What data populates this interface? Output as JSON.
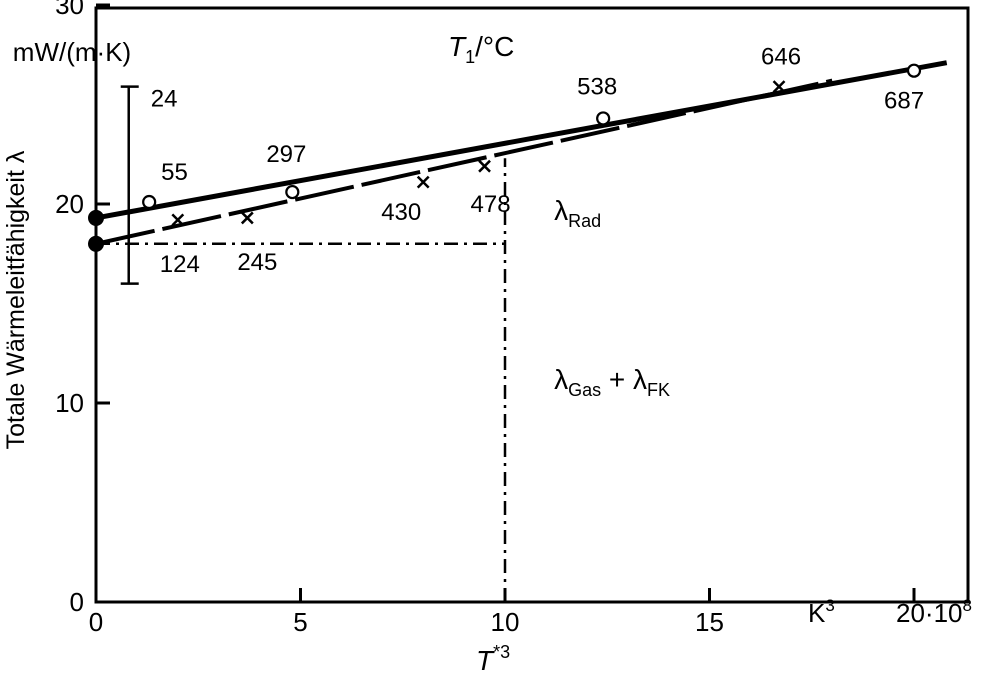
{
  "chart_data": {
    "type": "scatter",
    "title": "",
    "ylabel": "Totale Wärmeleitfähigkeit λ",
    "yunit": "mW/(m·K)",
    "xlabel": "T*3",
    "xunit_label": "K3",
    "x_exponent_label": "20·10",
    "x_exponent_power": "8",
    "top_label": "T1/°C",
    "xlim": [
      0,
      20.5
    ],
    "ylim": [
      0,
      30
    ],
    "x_ticks": [
      0,
      5,
      10,
      15,
      20
    ],
    "x_tick_labels": [
      "0",
      "5",
      "10",
      "15",
      ""
    ],
    "y_ticks": [
      0,
      10,
      20,
      30
    ],
    "y_tick_labels": [
      "0",
      "10",
      "20",
      "30"
    ],
    "grid": false,
    "series": [
      {
        "marker": "circle",
        "points": [
          {
            "x": 1.3,
            "y": 20.1,
            "label": "55"
          },
          {
            "x": 4.8,
            "y": 20.6,
            "label": "297"
          },
          {
            "x": 12.4,
            "y": 24.3,
            "label": "538"
          },
          {
            "x": 20.0,
            "y": 26.7,
            "label": "687"
          }
        ],
        "fit_line": {
          "x0": 0,
          "y0": 19.3,
          "x1": 20.8,
          "y1": 27.1
        },
        "intercept_marker": {
          "x": 0,
          "y": 19.3
        }
      },
      {
        "marker": "x",
        "points": [
          {
            "x": 2.0,
            "y": 19.2,
            "label": "124"
          },
          {
            "x": 3.7,
            "y": 19.3,
            "label": "245"
          },
          {
            "x": 8.0,
            "y": 21.1,
            "label": "430"
          },
          {
            "x": 9.5,
            "y": 21.9,
            "label": "478"
          },
          {
            "x": 16.7,
            "y": 25.9,
            "label": "646"
          }
        ],
        "fit_line": {
          "x0": 0,
          "y0": 18.0,
          "x1": 18.0,
          "y1": 26.2
        },
        "intercept_marker": {
          "x": 0,
          "y": 18.0
        }
      }
    ],
    "error_bar": {
      "x": 0.8,
      "y_low": 16.0,
      "y_high": 25.9,
      "label": "24"
    },
    "reference_lines": {
      "x": 10,
      "y": 18.0
    },
    "annotations": [
      {
        "base": "λ",
        "sub": "Rad",
        "x": 11.2,
        "y": 19.2
      },
      {
        "base": "λ",
        "sub": "Gas",
        "mid": " + λ",
        "sub2": "FK",
        "x": 11.2,
        "y": 10.7
      }
    ]
  }
}
